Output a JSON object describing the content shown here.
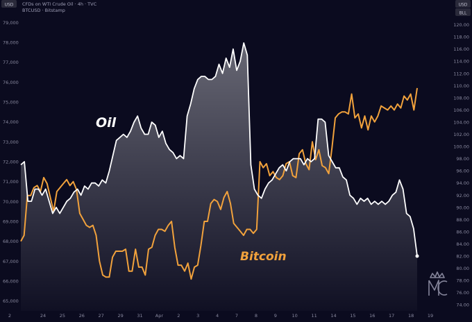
{
  "header": {
    "left_currency": "USD",
    "right_currency": "USD",
    "right_unit": "BLL",
    "line1": "CFDs on WTI Crude Oil · 4h · TVC",
    "line2": "BTCUSD · Bitstamp"
  },
  "labels": {
    "oil": "Oil",
    "bitcoin": "Bitcoin"
  },
  "colors": {
    "background": "#0b0b1f",
    "oil": "#ffffff",
    "bitcoin": "#f2a23c",
    "axis_text": "#8a8aa0",
    "label_box": "#2a2a3a"
  },
  "icons": {
    "watermark": "mc-crown-logo-icon"
  },
  "chart_data": {
    "type": "line",
    "x_ticks": [
      "24",
      "25",
      "26",
      "27",
      "29",
      "31",
      "Apr",
      "2",
      "3",
      "4",
      "7",
      "8",
      "9",
      "10",
      "11",
      "14",
      "15",
      "16",
      "17",
      "18",
      "19"
    ],
    "left_axis": {
      "currency": "USD",
      "ticks": [
        "65,000",
        "66,000",
        "67,000",
        "68,000",
        "69,000",
        "70,000",
        "71,000",
        "72,000",
        "73,000",
        "74,000",
        "75,000",
        "76,000",
        "77,000",
        "78,000",
        "79,000"
      ],
      "range": [
        64500,
        79500
      ]
    },
    "right_axis": {
      "currency": "USD",
      "unit": "BLL",
      "ticks": [
        "74.00",
        "76.00",
        "78.00",
        "80.00",
        "82.00",
        "84.00",
        "86.00",
        "88.00",
        "90.00",
        "92.00",
        "94.00",
        "96.00",
        "98.00",
        "100.00",
        "102.00",
        "104.00",
        "106.00",
        "108.00",
        "110.00",
        "112.00",
        "114.00",
        "116.00",
        "118.00",
        "120.00"
      ],
      "range": [
        73,
        122
      ]
    },
    "series": [
      {
        "name": "Oil",
        "axis": "right",
        "values": [
          97,
          97.5,
          91,
          91,
          93,
          93,
          92,
          93,
          91,
          89,
          90,
          89,
          90,
          91,
          91.5,
          92.5,
          93,
          92,
          93.5,
          93,
          94,
          94,
          93.5,
          94.5,
          94,
          96,
          98.5,
          101,
          101.5,
          102,
          101.5,
          102.5,
          104,
          105,
          103,
          102,
          102,
          104,
          103.5,
          101.5,
          102.5,
          100.5,
          99.5,
          99,
          98,
          98.5,
          98,
          105,
          107,
          109.5,
          111,
          111.5,
          111.5,
          111,
          111,
          111.5,
          113.5,
          112,
          114.5,
          113,
          116,
          112.5,
          114,
          117,
          115,
          97,
          93,
          92,
          91.5,
          93,
          94,
          94.5,
          95.5,
          96.5,
          97,
          96,
          97.5,
          98,
          98,
          98,
          97,
          98,
          97.5,
          98,
          104.5,
          104.5,
          104,
          98.5,
          97.5,
          96.5,
          96.5,
          95,
          94.5,
          92,
          91.5,
          90.5,
          91.5,
          91,
          91.5,
          90.5,
          91,
          90.5,
          91,
          90.5,
          91,
          92,
          92.5,
          94.5,
          93,
          89,
          88.5,
          86.5,
          82
        ]
      },
      {
        "name": "Bitcoin",
        "axis": "left",
        "values": [
          68,
          68.3,
          70.3,
          70.3,
          70.7,
          70.8,
          70.5,
          71.2,
          70.9,
          70.2,
          69.5,
          70.5,
          70.7,
          70.9,
          71.1,
          70.8,
          71,
          70.6,
          69.4,
          69.1,
          68.8,
          68.7,
          68.8,
          68.3,
          67,
          66.3,
          66.2,
          66.2,
          67.2,
          67.5,
          67.5,
          67.5,
          67.6,
          66.5,
          66.5,
          67.6,
          66.7,
          66.7,
          66.3,
          67.6,
          67.7,
          68.3,
          68.6,
          68.6,
          68.5,
          68.8,
          69,
          67.7,
          66.8,
          66.8,
          66.5,
          66.9,
          66.1,
          66.7,
          66.8,
          67.8,
          69,
          69,
          69.9,
          70.1,
          70,
          69.6,
          70.2,
          70.5,
          69.9,
          68.9,
          68.7,
          68.5,
          68.3,
          68.6,
          68.6,
          68.4,
          68.6,
          72,
          71.7,
          71.9,
          71.3,
          71.5,
          71.2,
          71.1,
          71.3,
          71.9,
          72,
          71.3,
          71.2,
          72.4,
          72.6,
          71.9,
          71.6,
          73,
          72.1,
          72.6,
          71.8,
          71.7,
          71.4,
          72.7,
          74.2,
          74.4,
          74.5,
          74.5,
          74.4,
          75.4,
          74.2,
          74.4,
          73.7,
          74.3,
          73.6,
          74.3,
          74,
          74.3,
          74.8,
          74.7,
          74.6,
          74.8,
          74.6,
          74.9,
          74.7,
          75.3,
          75.1,
          75.4,
          74.6,
          75.7
        ]
      }
    ]
  }
}
